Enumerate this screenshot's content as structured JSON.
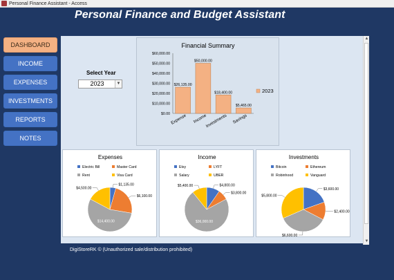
{
  "window": {
    "title": "Personal Finance Assistant - Access"
  },
  "app": {
    "title": "Personal Finance and Budget Assistant"
  },
  "nav": {
    "items": [
      {
        "label": "DASHBOARD",
        "active": true
      },
      {
        "label": "INCOME",
        "active": false
      },
      {
        "label": "EXPENSES",
        "active": false
      },
      {
        "label": "INVESTMENTS",
        "active": false
      },
      {
        "label": "REPORTS",
        "active": false
      },
      {
        "label": "NOTES",
        "active": false
      }
    ]
  },
  "year": {
    "label": "Select Year",
    "value": "2023"
  },
  "colors": {
    "background": "#1f3864",
    "nav_button": "#4472c4",
    "nav_active": "#f4b183",
    "content": "#dce6f2",
    "bar": "#f4b183",
    "pie_blue": "#4472c4",
    "pie_orange": "#ed7d31",
    "pie_gray": "#a5a5a5",
    "pie_gold": "#ffc000"
  },
  "chart_data": [
    {
      "type": "bar",
      "title": "Financial Summary",
      "categories": [
        "Expense",
        "Income",
        "Investments",
        "Savings"
      ],
      "series": [
        {
          "name": "2023",
          "values": [
            26135,
            50000,
            18400,
            5465
          ]
        }
      ],
      "value_labels": [
        "$26,135.00",
        "$50,000.00",
        "$18,400.00",
        "$5,465.00"
      ],
      "y_ticks": [
        "$0.00",
        "$10,000.00",
        "$20,000.00",
        "$30,000.00",
        "$40,000.00",
        "$50,000.00",
        "$60,000.00"
      ],
      "ylim": [
        0,
        60000
      ],
      "legend": "right",
      "grid": false
    },
    {
      "type": "pie",
      "title": "Expenses",
      "labels": [
        "Electric Bill",
        "Master Card",
        "Rent",
        "Visa Card"
      ],
      "values": [
        1135,
        6100,
        14400,
        4500
      ],
      "value_labels": [
        "$1,135.00",
        "$6,100.00",
        "$14,400.00",
        "$4,500.00"
      ],
      "colors": [
        "#4472c4",
        "#ed7d31",
        "#a5a5a5",
        "#ffc000"
      ],
      "legend": "top"
    },
    {
      "type": "pie",
      "title": "Income",
      "labels": [
        "Etsy",
        "LYFT",
        "Salary",
        "UBER"
      ],
      "values": [
        4800,
        3800,
        36000,
        5400
      ],
      "value_labels": [
        "$4,800.00",
        "$3,800.00",
        "$36,000.00",
        "$5,400.00"
      ],
      "colors": [
        "#4472c4",
        "#ed7d31",
        "#a5a5a5",
        "#ffc000"
      ],
      "legend": "top"
    },
    {
      "type": "pie",
      "title": "Investments",
      "labels": [
        "Bitcoin",
        "Ethereum",
        "Robinhood",
        "Vanguard"
      ],
      "values": [
        3600,
        2400,
        6600,
        5800
      ],
      "value_labels": [
        "$3,600.00",
        "$2,400.00",
        "$6,600.00",
        "$5,800.00"
      ],
      "colors": [
        "#4472c4",
        "#ed7d31",
        "#a5a5a5",
        "#ffc000"
      ],
      "legend": "top"
    }
  ],
  "footer": {
    "text": "DigiStoreRK © (Unauthorized sale/distribution prohibited)"
  }
}
